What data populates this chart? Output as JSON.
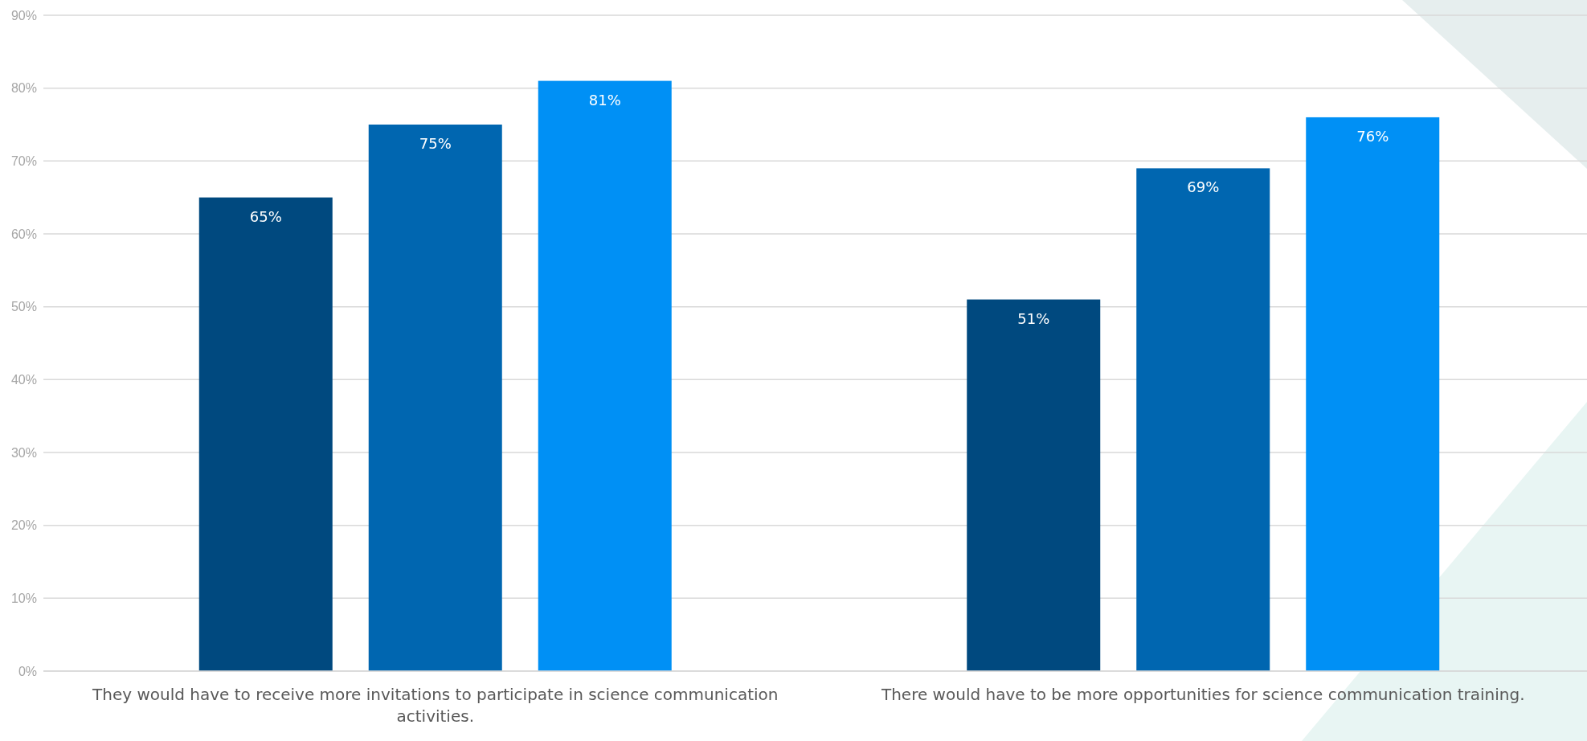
{
  "chart_data": {
    "type": "bar",
    "categories": [
      "They would have to receive more invitations to participate in science communication activities.",
      "There would have to be more opportunities for science communication training."
    ],
    "series": [
      {
        "color": "#00497f",
        "values": [
          65,
          51
        ],
        "value_labels": [
          "65%",
          "51%"
        ]
      },
      {
        "color": "#0066b0",
        "values": [
          75,
          69
        ],
        "value_labels": [
          "75%",
          "69%"
        ]
      },
      {
        "color": "#0090f5",
        "values": [
          81,
          76
        ],
        "value_labels": [
          "81%",
          "76%"
        ]
      }
    ],
    "ylim": [
      0,
      90
    ],
    "yticks": [
      {
        "value": 0,
        "label": "0%"
      },
      {
        "value": 10,
        "label": "10%"
      },
      {
        "value": 20,
        "label": "20%"
      },
      {
        "value": 30,
        "label": "30%"
      },
      {
        "value": 40,
        "label": "40%"
      },
      {
        "value": 50,
        "label": "50%"
      },
      {
        "value": 60,
        "label": "60%"
      },
      {
        "value": 70,
        "label": "70%"
      },
      {
        "value": 80,
        "label": "80%"
      },
      {
        "value": 90,
        "label": "90%"
      }
    ],
    "grid": "y"
  }
}
